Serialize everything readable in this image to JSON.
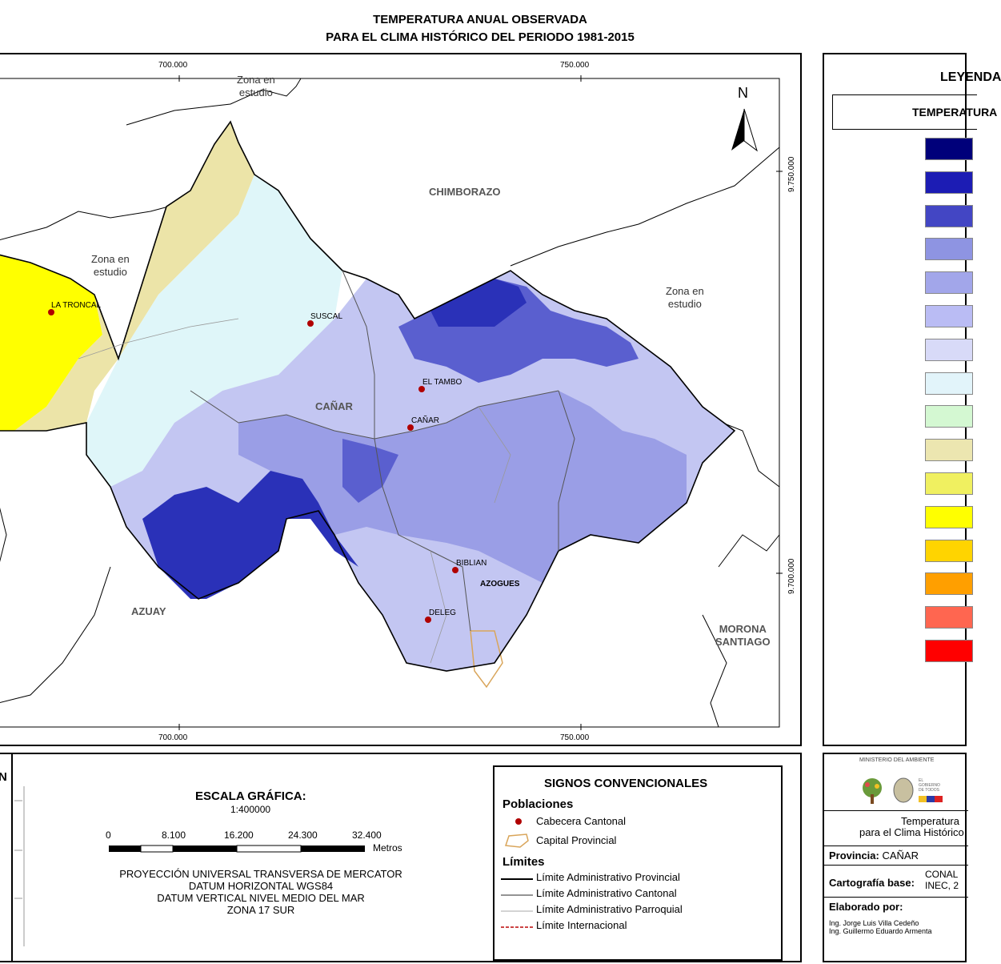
{
  "title": {
    "line1": "TEMPERATURA ANUAL OBSERVADA",
    "line2": "PARA EL CLIMA HISTÓRICO DEL PERIODO 1981-2015"
  },
  "map": {
    "coords_top": [
      "700.000",
      "750.000"
    ],
    "coords_bottom": [
      "700.000",
      "750.000"
    ],
    "coords_right": [
      "9.750.000",
      "9.700.000"
    ],
    "north": "N",
    "regions": {
      "chimborazo": "CHIMBORAZO",
      "canar": "CAÑAR",
      "azuay": "AZUAY",
      "morona": [
        "MORONA",
        "SANTIAGO"
      ]
    },
    "zones": {
      "top": [
        "Zona en",
        "estudio"
      ],
      "left": [
        "Zona en",
        "estudio"
      ],
      "right": [
        "Zona en",
        "estudio"
      ]
    },
    "towns": {
      "la_troncal": "LA TRONCAL",
      "suscal": "SUSCAL",
      "el_tambo": "EL TAMBO",
      "canar": "CAÑAR",
      "biblian": "BIBLIAN",
      "azogues": "AZOGUES",
      "deleg": "DELEG"
    },
    "colors": {
      "darkblue": "#2a31b8",
      "midblue": "#5a5fcf",
      "lightblue": "#9a9ee6",
      "paleblue": "#c3c6f2",
      "ice": "#dfe9fb",
      "cyan": "#dff6f9",
      "mint": "#d8f5d8",
      "beige": "#ece4a8",
      "yellow": "#ffff00"
    }
  },
  "legend": {
    "title": "LEYENDA",
    "subtitle": "TEMPERATURA",
    "colors": [
      "#00007a",
      "#1c1cb4",
      "#4346c4",
      "#8e94e2",
      "#a2a6ea",
      "#babcf4",
      "#d8daf8",
      "#e2f4fa",
      "#d4f8d2",
      "#ece6b0",
      "#f0f060",
      "#ffff00",
      "#ffd400",
      "#ff9f00",
      "#ff6650",
      "#ff0000"
    ]
  },
  "inset": {
    "letter": "N"
  },
  "scale": {
    "title": "ESCALA GRÁFICA:",
    "ratio": "1:400000",
    "numbers": [
      "0",
      "8.100",
      "16.200",
      "24.300",
      "32.400"
    ],
    "unit": "Metros",
    "projection": [
      "PROYECCIÓN UNIVERSAL TRANSVERSA DE MERCATOR",
      "DATUM HORIZONTAL WGS84",
      "DATUM VERTICAL NIVEL MEDIO DEL MAR",
      "ZONA 17 SUR"
    ]
  },
  "signs": {
    "title": "SIGNOS CONVENCIONALES",
    "poblaciones": "Poblaciones",
    "cabecera": "Cabecera Cantonal",
    "capital": "Capital Provincial",
    "limites": "Límites",
    "provincial": "Límite Administrativo Provincial",
    "cantonal": "Límite Administrativo Cantonal",
    "parroquial": "Límite Administrativo Parroquial",
    "internacional": "Límite Internacional"
  },
  "info": {
    "ministry": "MINISTERIO DEL AMBIENTE",
    "gov": [
      "EL",
      "GOBIERNO",
      "DE TODOS"
    ],
    "temp1": "Temperatura",
    "temp2": "para el Clima Histórico",
    "provincia_label": "Provincia:",
    "provincia_value": "CAÑAR",
    "carto_label": "Cartografía base:",
    "carto_value1": "CONAL",
    "carto_value2": "INEC, 2",
    "elaborado_label": "Elaborado por:",
    "author1": "Ing. Jorge Luis Villa Cedeño",
    "author2": "Ing. Guillermo Eduardo Armenta"
  }
}
